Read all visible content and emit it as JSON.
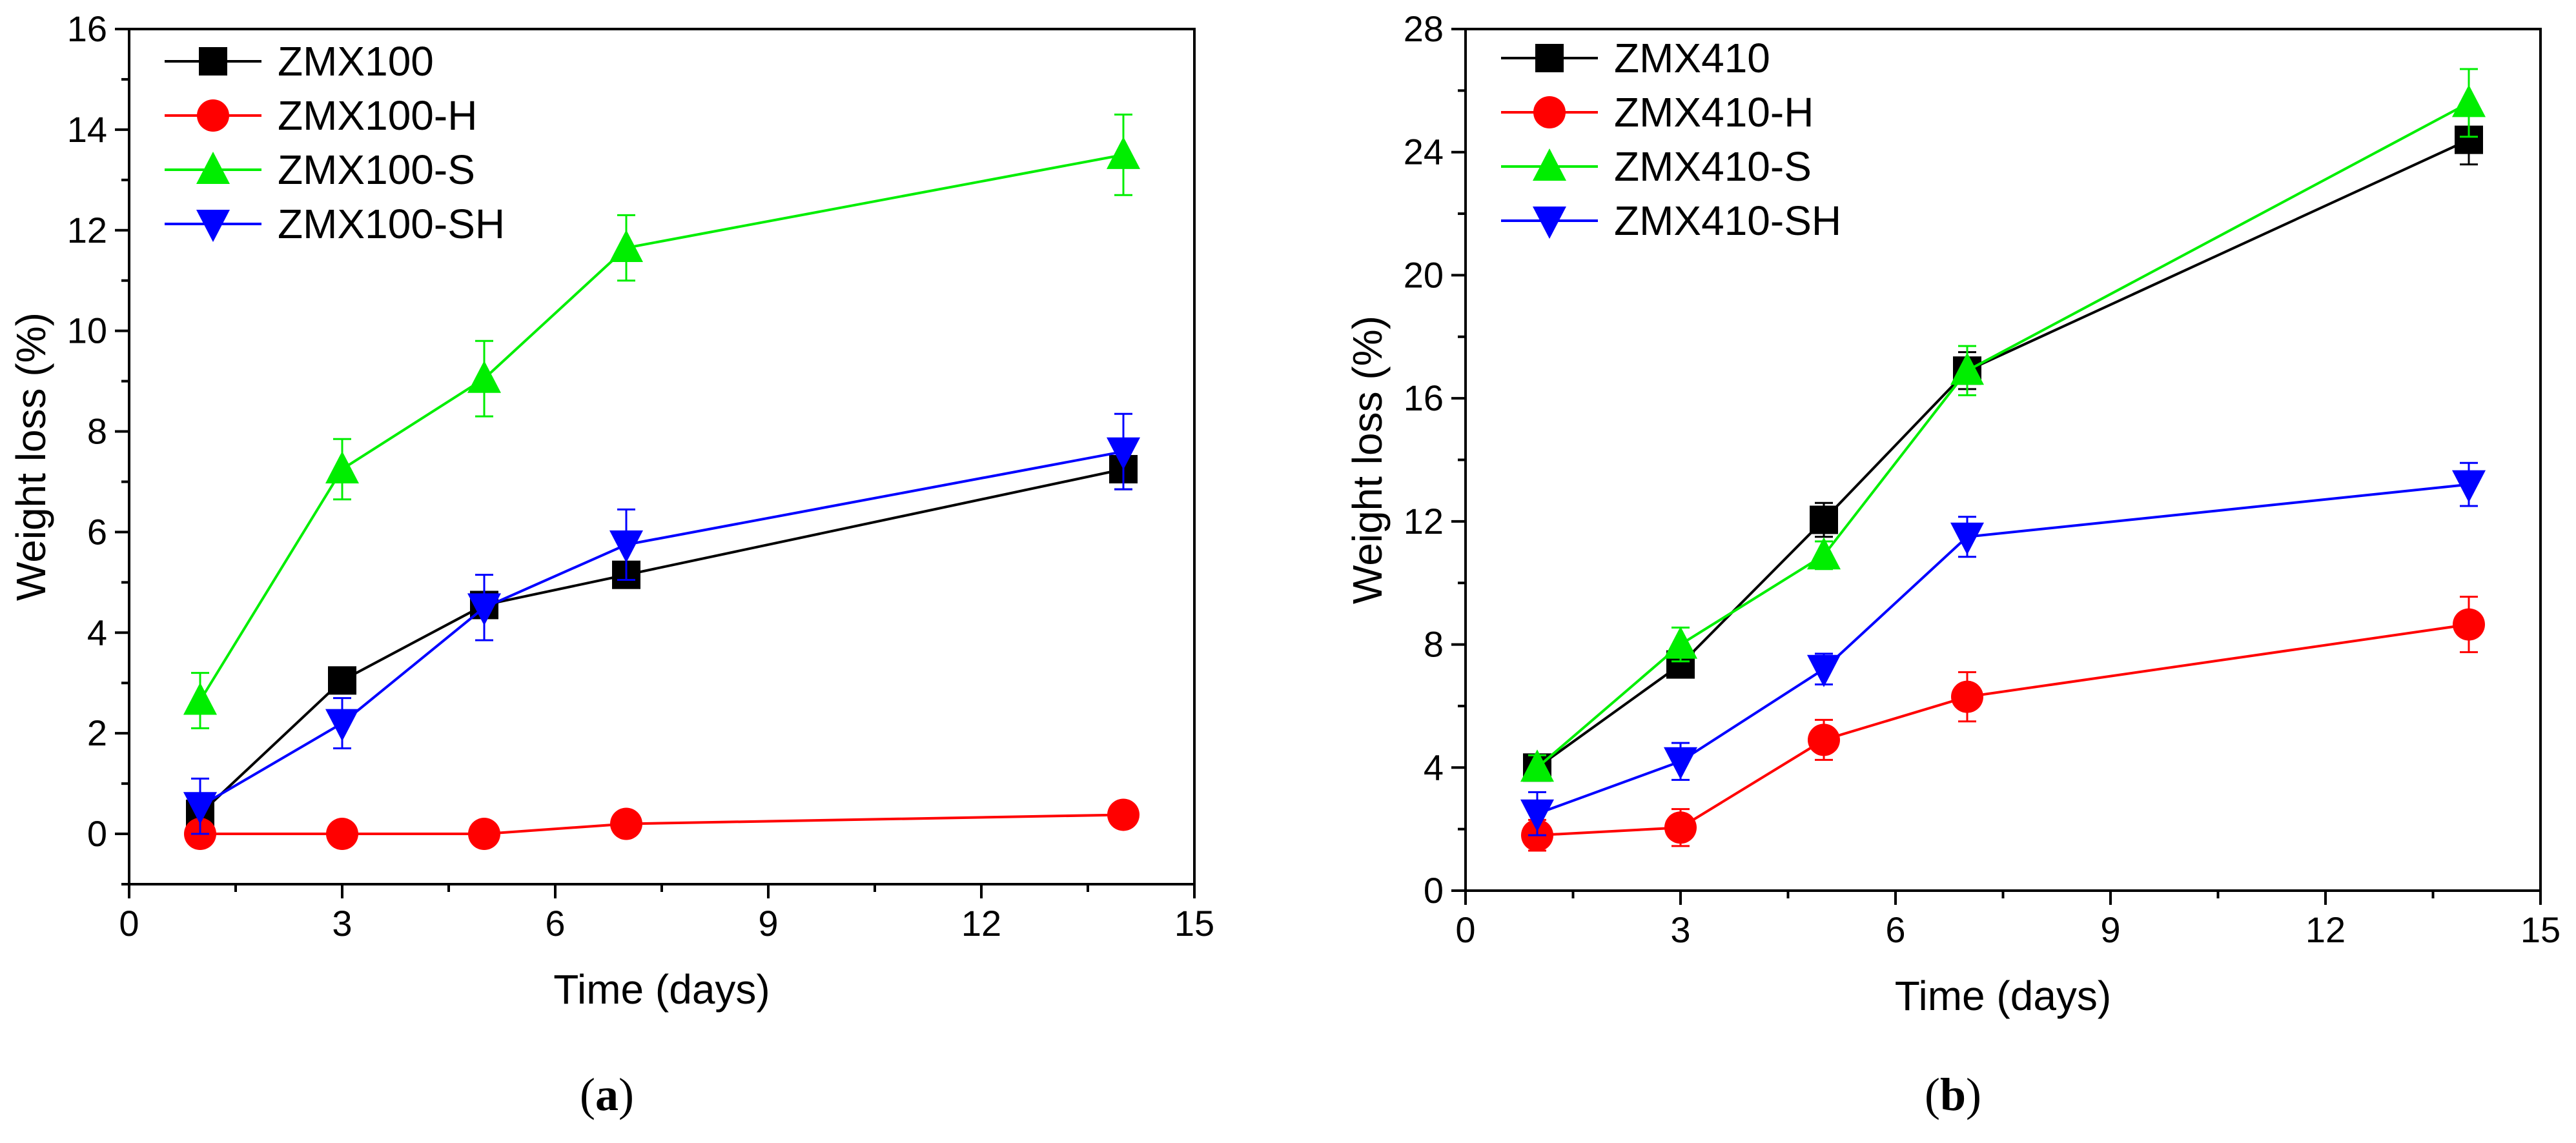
{
  "chart_data": [
    {
      "type": "line",
      "panel_label": "a",
      "xlabel": "Time (days)",
      "ylabel": "Weight loss (%)",
      "xlim": [
        0,
        15
      ],
      "ylim": [
        -1,
        16
      ],
      "xticks": [
        0,
        3,
        6,
        9,
        12,
        15
      ],
      "yticks": [
        0,
        2,
        4,
        6,
        8,
        10,
        12,
        14,
        16
      ],
      "grid": false,
      "legend_position": "top-left",
      "series": [
        {
          "name": "ZMX100",
          "color": "#000000",
          "marker": "square",
          "x": [
            1,
            3,
            5,
            7,
            14
          ],
          "y": [
            0.4,
            3.05,
            4.55,
            5.15,
            7.25
          ],
          "err": [
            0.2,
            0.15,
            0.2,
            0.15,
            0.4
          ]
        },
        {
          "name": "ZMX100-H",
          "color": "#ff0000",
          "marker": "circle",
          "x": [
            1,
            3,
            5,
            7,
            14
          ],
          "y": [
            0.0,
            0.0,
            0.0,
            0.2,
            0.38
          ],
          "err": [
            0.08,
            0.08,
            0.08,
            0.1,
            0.2
          ]
        },
        {
          "name": "ZMX100-S",
          "color": "#00ee00",
          "marker": "triangle-up",
          "x": [
            1,
            3,
            5,
            7,
            14
          ],
          "y": [
            2.65,
            7.25,
            9.05,
            11.65,
            13.5
          ],
          "err": [
            0.55,
            0.6,
            0.75,
            0.65,
            0.8
          ]
        },
        {
          "name": "ZMX100-SH",
          "color": "#0000ff",
          "marker": "triangle-down",
          "x": [
            1,
            3,
            5,
            7,
            14
          ],
          "y": [
            0.55,
            2.2,
            4.5,
            5.75,
            7.6
          ],
          "err": [
            0.55,
            0.5,
            0.65,
            0.7,
            0.75
          ]
        }
      ]
    },
    {
      "type": "line",
      "panel_label": "b",
      "xlabel": "Time (days)",
      "ylabel": "Weight loss (%)",
      "xlim": [
        0,
        15
      ],
      "ylim": [
        0,
        28
      ],
      "xticks": [
        0,
        3,
        6,
        9,
        12,
        15
      ],
      "yticks": [
        0,
        4,
        8,
        12,
        16,
        20,
        24,
        28
      ],
      "grid": false,
      "legend_position": "top-left",
      "series": [
        {
          "name": "ZMX410",
          "color": "#000000",
          "marker": "square",
          "x": [
            1,
            3,
            5,
            7,
            14
          ],
          "y": [
            4.0,
            7.35,
            12.05,
            16.9,
            24.4
          ],
          "err": [
            0.4,
            0.4,
            0.55,
            0.6,
            0.8
          ]
        },
        {
          "name": "ZMX410-H",
          "color": "#ff0000",
          "marker": "circle",
          "x": [
            1,
            3,
            5,
            7,
            14
          ],
          "y": [
            1.8,
            2.05,
            4.9,
            6.3,
            8.65
          ],
          "err": [
            0.5,
            0.6,
            0.65,
            0.8,
            0.9
          ]
        },
        {
          "name": "ZMX410-S",
          "color": "#00ee00",
          "marker": "triangle-up",
          "x": [
            1,
            3,
            5,
            7,
            14
          ],
          "y": [
            4.0,
            8.0,
            10.9,
            16.9,
            25.6
          ],
          "err": [
            0.4,
            0.55,
            0.45,
            0.8,
            1.1
          ]
        },
        {
          "name": "ZMX410-SH",
          "color": "#0000ff",
          "marker": "triangle-down",
          "x": [
            1,
            3,
            5,
            7,
            14
          ],
          "y": [
            2.5,
            4.2,
            7.2,
            11.5,
            13.2
          ],
          "err": [
            0.7,
            0.6,
            0.5,
            0.65,
            0.7
          ]
        }
      ]
    }
  ]
}
